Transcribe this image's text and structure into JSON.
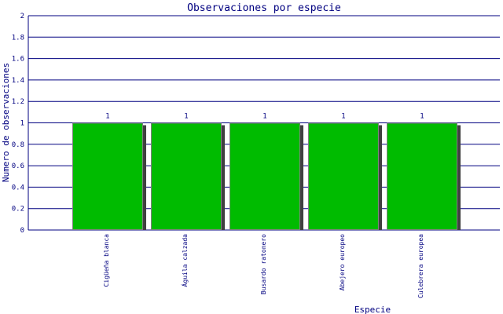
{
  "chart_data": {
    "type": "bar",
    "title": "Observaciones por especie",
    "xlabel": "Especie",
    "ylabel": "Numero de observaciones",
    "categories": [
      "Cigüeña blanca",
      "Águila calzada",
      "Busardo ratonero",
      "Abejero europeo",
      "Culebrera europea"
    ],
    "values": [
      1,
      1,
      1,
      1,
      1
    ],
    "data_labels": [
      "1",
      "1",
      "1",
      "1",
      "1"
    ],
    "ylim": [
      0,
      2
    ],
    "yticks": [
      "0",
      "0.2",
      "0.4",
      "0.6",
      "0.8",
      "1",
      "1.2",
      "1.4",
      "1.6",
      "1.8",
      "2"
    ],
    "grid": true,
    "colors": {
      "bar": "#00bb00",
      "bar_border": "#808080",
      "shadow": "#404040",
      "axis": "#000080"
    }
  }
}
